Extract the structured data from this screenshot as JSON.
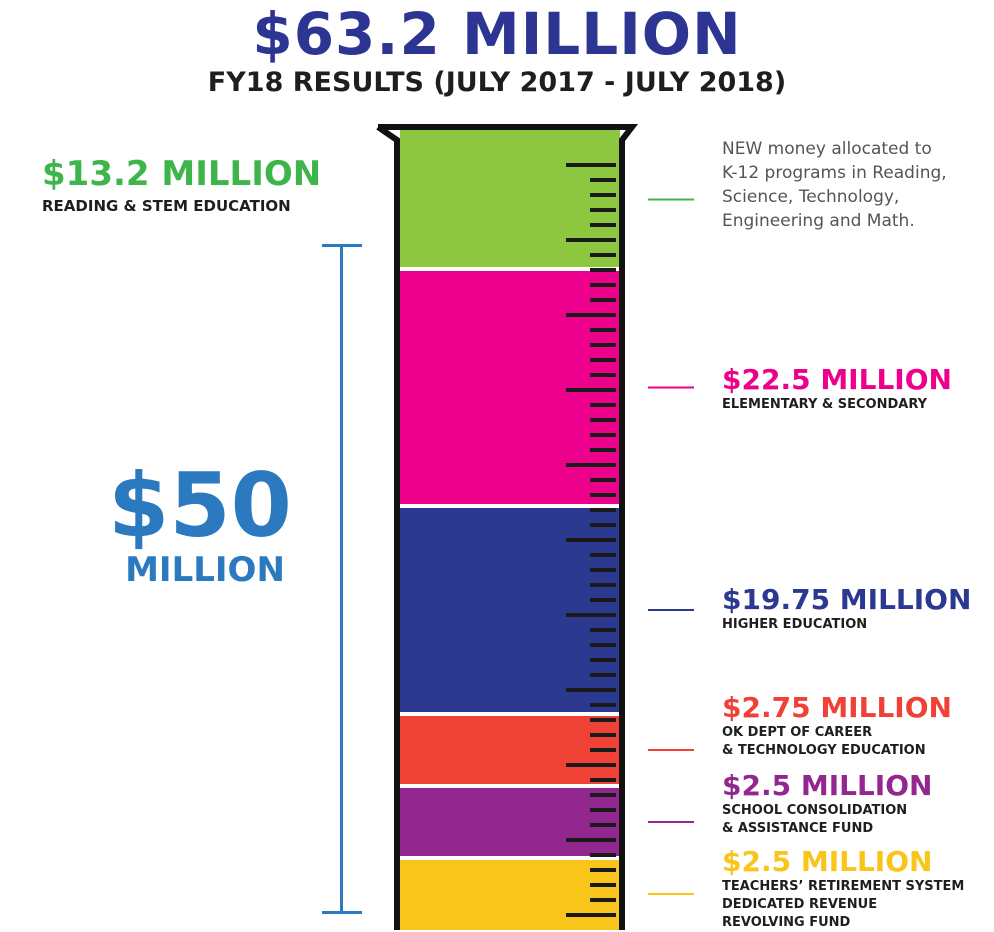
{
  "header": {
    "title": "$63.2 MILLION",
    "subtitle": "FY18 RESULTS (JULY 2017 - JULY 2018)"
  },
  "bracket": {
    "amount": "$50",
    "label": "MILLION",
    "color": "#2b7abf"
  },
  "chart_data": {
    "type": "bar",
    "orientation": "stacked-vertical (graduated cylinder)",
    "title": "$63.2 MILLION",
    "subtitle": "FY18 RESULTS (JULY 2017 - JULY 2018)",
    "unit": "million USD",
    "total": 63.2,
    "series": [
      {
        "name": "READING & STEM EDUCATION",
        "amount": "$13.2 MILLION",
        "value": 13.2,
        "color": "#8dc63f",
        "label_color": "#3db54a",
        "lines": [
          "READING & STEM EDUCATION"
        ],
        "note": "NEW money allocated to K-12 programs in Reading, Science, Technology, Engineering and Math.",
        "note_lines": [
          "NEW money allocated to",
          "K-12 programs in Reading,",
          "Science, Technology,",
          "Engineering and Math."
        ]
      },
      {
        "name": "ELEMENTARY & SECONDARY",
        "amount": "$22.5 MILLION",
        "value": 22.5,
        "color": "#ec008c",
        "label_color": "#ec008c",
        "lines": [
          "ELEMENTARY & SECONDARY"
        ]
      },
      {
        "name": "HIGHER EDUCATION",
        "amount": "$19.75 MILLION",
        "value": 19.75,
        "color": "#2b3990",
        "label_color": "#2b3990",
        "lines": [
          "HIGHER EDUCATION"
        ]
      },
      {
        "name": "OK DEPT OF CAREER & TECHNOLOGY EDUCATION",
        "amount": "$2.75 MILLION",
        "value": 2.75,
        "color": "#ef4136",
        "label_color": "#ef4136",
        "lines": [
          "OK DEPT OF CAREER",
          "& TECHNOLOGY EDUCATION"
        ]
      },
      {
        "name": "SCHOOL CONSOLIDATION & ASSISTANCE FUND",
        "amount": "$2.5 MILLION",
        "value": 2.5,
        "color": "#92278f",
        "label_color": "#92278f",
        "lines": [
          "SCHOOL CONSOLIDATION",
          "& ASSISTANCE FUND"
        ]
      },
      {
        "name": "TEACHERS' RETIREMENT SYSTEM DEDICATED REVENUE REVOLVING FUND",
        "amount": "$2.5 MILLION",
        "value": 2.5,
        "color": "#f9c51a",
        "label_color": "#f9c51a",
        "lines": [
          "TEACHERS’ RETIREMENT SYSTEM",
          "DEDICATED REVENUE",
          "REVOLVING FUND"
        ]
      }
    ]
  }
}
